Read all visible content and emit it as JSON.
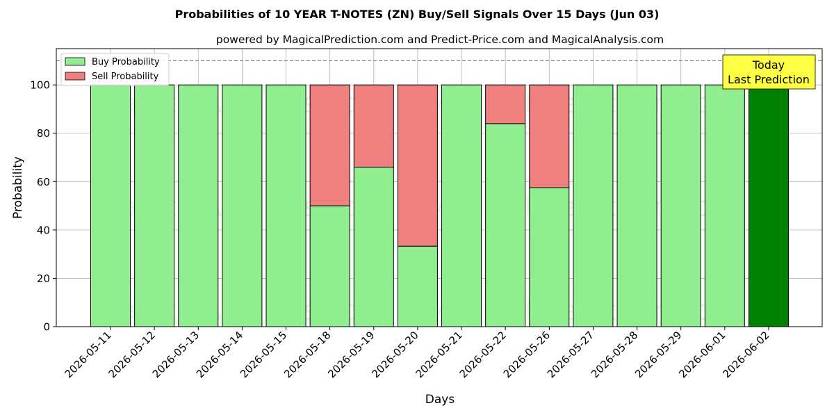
{
  "chart_data": {
    "type": "bar",
    "title": "Probabilities of 10 YEAR T-NOTES (ZN) Buy/Sell Signals Over 15 Days (Jun 03)",
    "subtitle": "powered by MagicalPrediction.com and Predict-Price.com and MagicalAnalysis.com",
    "xlabel": "Days",
    "ylabel": "Probability",
    "ylim": [
      0,
      115
    ],
    "yticks": [
      0,
      20,
      40,
      60,
      80,
      100
    ],
    "reference_line": 110,
    "grid": true,
    "stacked": true,
    "legend_position": "top-left",
    "categories": [
      "2026-05-11",
      "2026-05-12",
      "2026-05-13",
      "2026-05-14",
      "2026-05-15",
      "2026-05-18",
      "2026-05-19",
      "2026-05-20",
      "2026-05-21",
      "2026-05-22",
      "2026-05-26",
      "2026-05-27",
      "2026-05-28",
      "2026-05-29",
      "2026-06-01",
      "2026-06-02"
    ],
    "series": [
      {
        "name": "Buy Probability",
        "color": "#90ee90",
        "values": [
          100,
          100,
          100,
          100,
          100,
          50,
          66,
          33.3,
          100,
          84,
          57.5,
          100,
          100,
          100,
          100,
          100
        ]
      },
      {
        "name": "Sell Probability",
        "color": "#f08080",
        "values": [
          0,
          0,
          0,
          0,
          0,
          50,
          34,
          66.7,
          0,
          16,
          42.5,
          0,
          0,
          0,
          0,
          0
        ]
      }
    ],
    "highlight": {
      "index": 15,
      "color": "#008000"
    },
    "annotation": {
      "line1": "Today",
      "line2": "Last Prediction",
      "background": "#ffff44"
    },
    "watermarks": [
      "MagicalAnalysis.com",
      "MagicalPrediction.com"
    ]
  }
}
